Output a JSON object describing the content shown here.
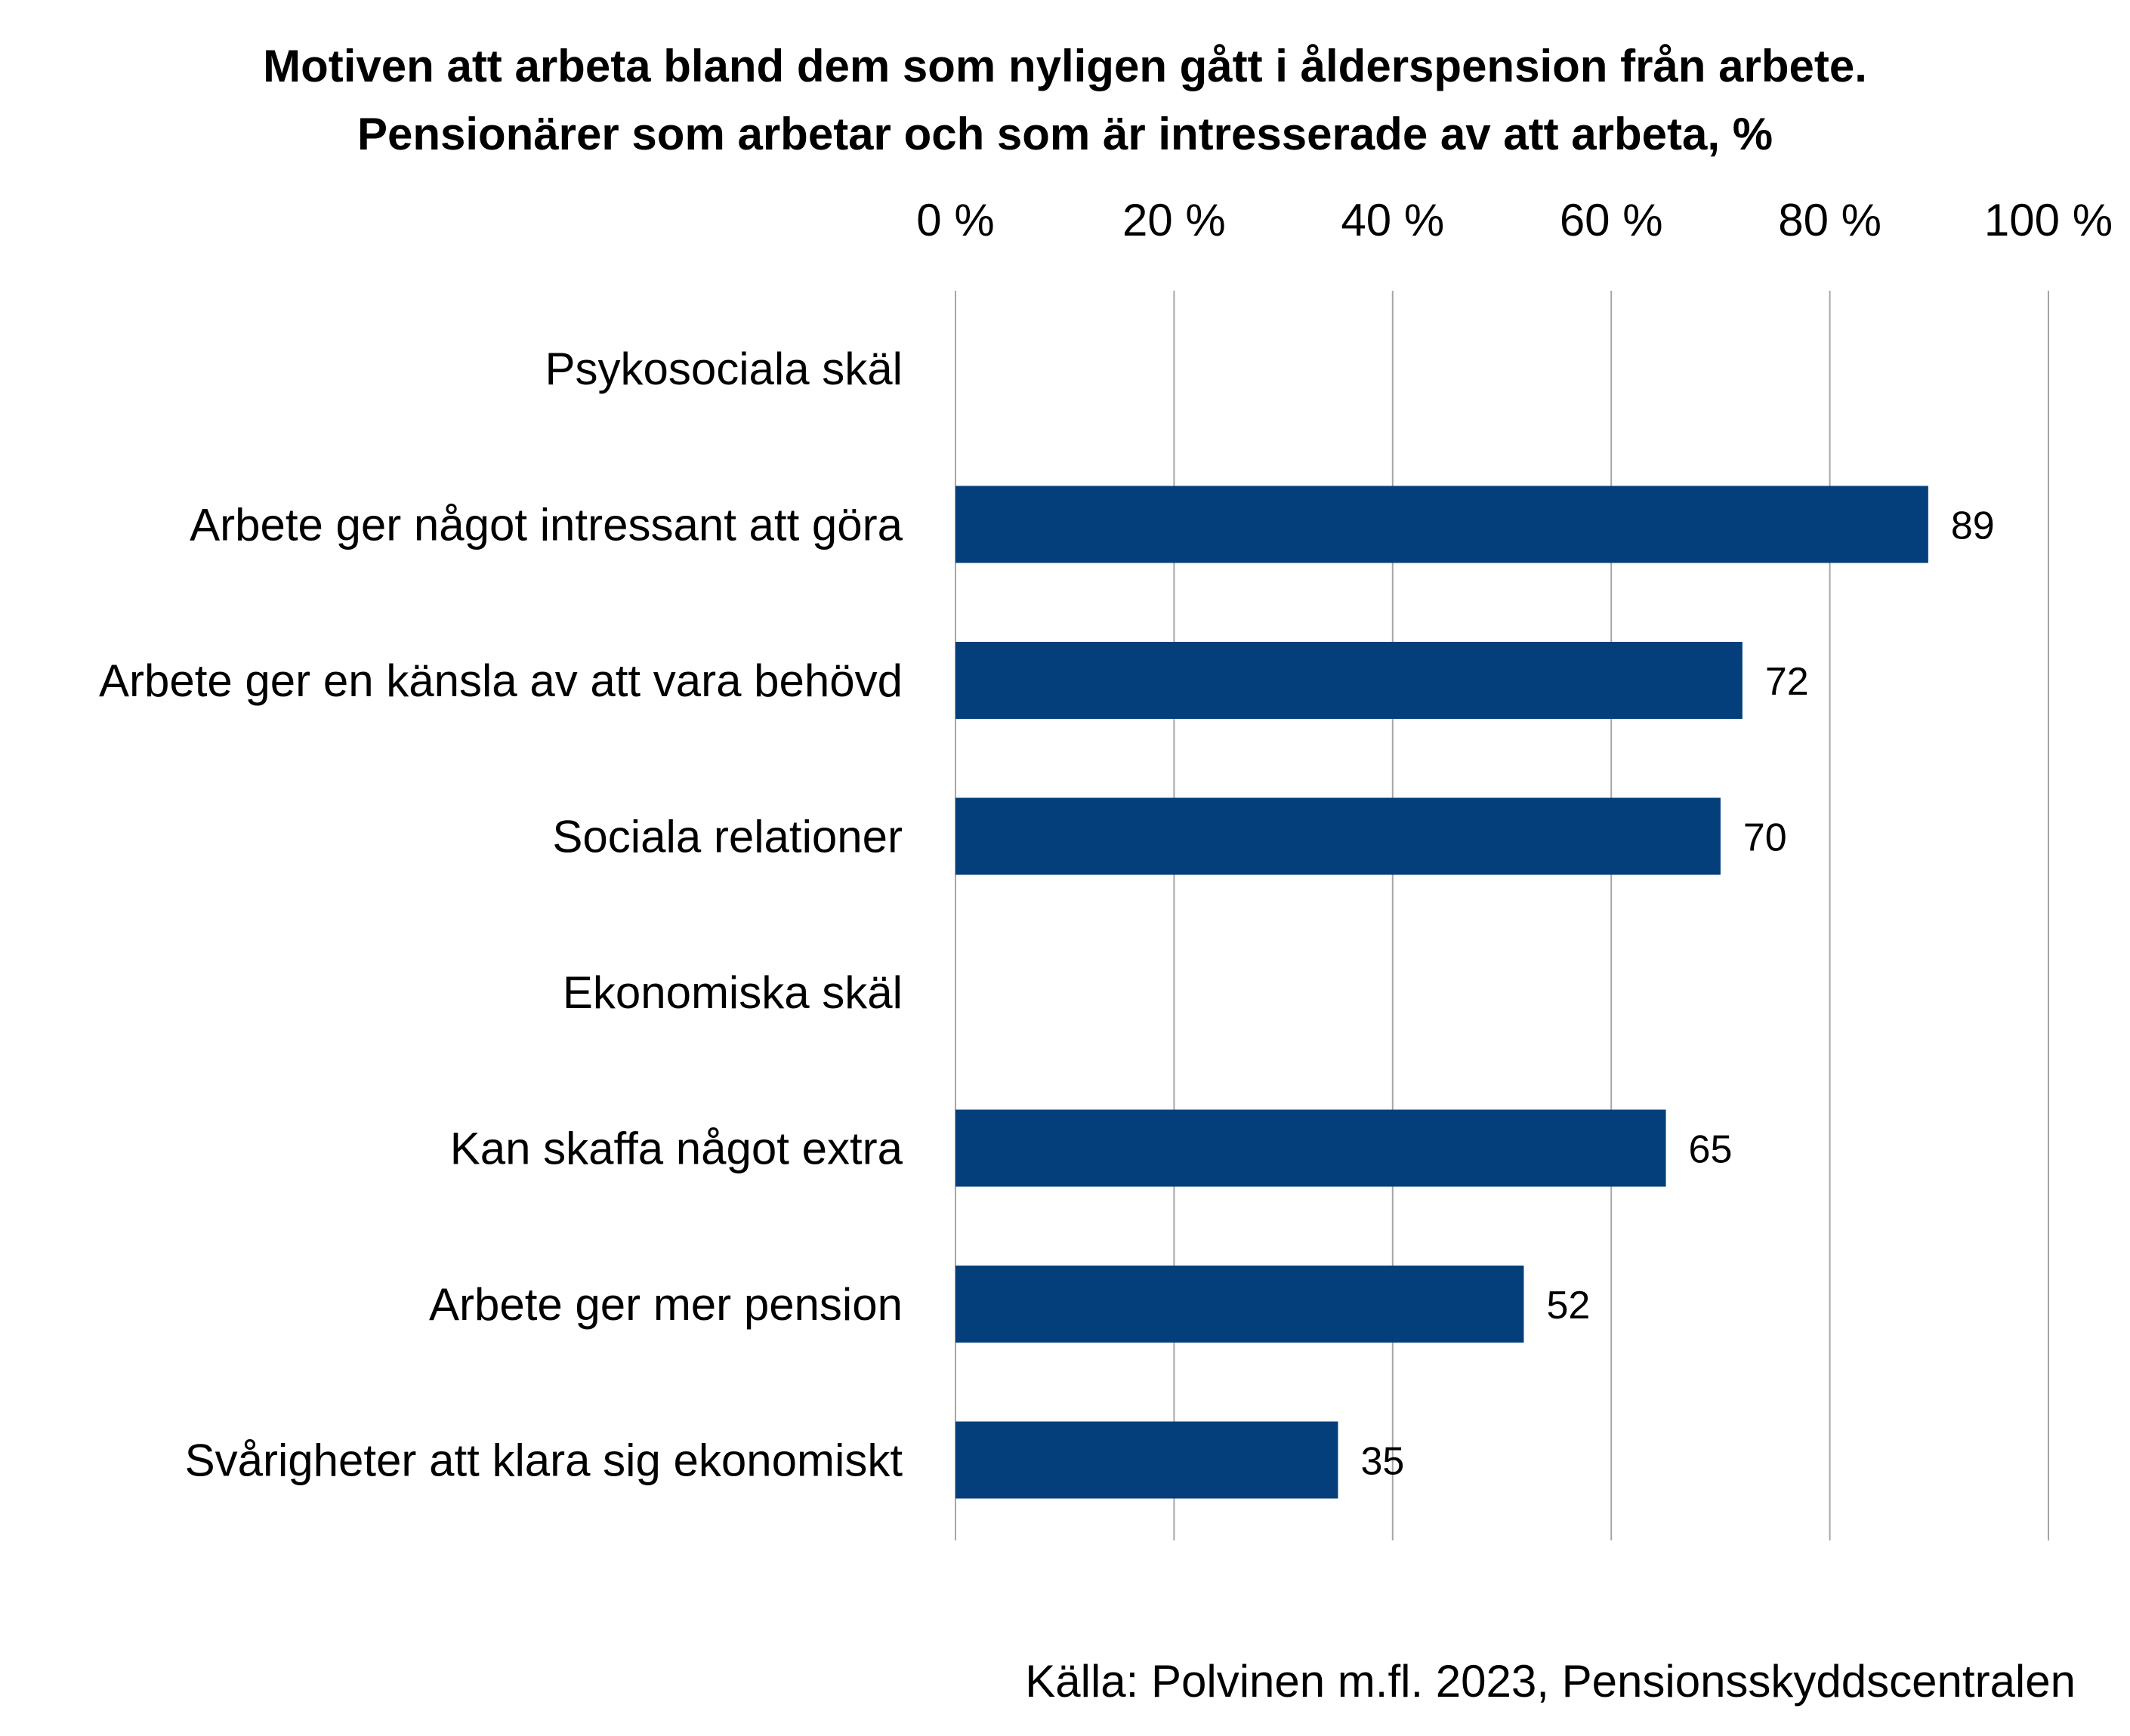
{
  "chart_data": {
    "type": "bar",
    "orientation": "horizontal",
    "title_lines": [
      "Motiven att arbeta bland dem som nyligen gått i ålderspension från arbete.",
      "Pensionärer som arbetar och som är intresserade av att arbeta, %"
    ],
    "categories": [
      "Psykosociala skäl",
      "Arbete ger något intressant att göra",
      "Arbete ger en känsla av att vara behövd",
      "Sociala relationer",
      "Ekonomiska skäl",
      "Kan skaffa något extra",
      "Arbete ger mer pension",
      "Svårigheter att klara sig ekonomiskt"
    ],
    "values": [
      null,
      89,
      72,
      70,
      null,
      65,
      52,
      35
    ],
    "data_labels": [
      "",
      "89",
      "72",
      "70",
      "",
      "65",
      "52",
      "35"
    ],
    "xlim": [
      0,
      100
    ],
    "x_ticks": [
      0,
      20,
      40,
      60,
      80,
      100
    ],
    "x_tick_labels": [
      "0 %",
      "20 %",
      "40 %",
      "60 %",
      "80 %",
      "100 %"
    ],
    "axis_position": "top",
    "grid": true,
    "legend": "none",
    "bar_color": "#043f7b",
    "gridline_color": "#a6a6a6",
    "source": "Källa: Polvinen m.fl. 2023, Pensionsskyddscentralen"
  }
}
